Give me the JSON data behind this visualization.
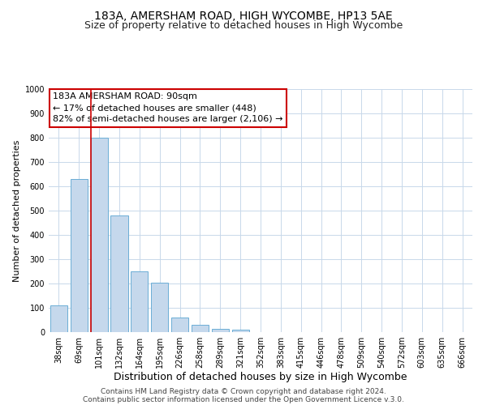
{
  "title": "183A, AMERSHAM ROAD, HIGH WYCOMBE, HP13 5AE",
  "subtitle": "Size of property relative to detached houses in High Wycombe",
  "xlabel": "Distribution of detached houses by size in High Wycombe",
  "ylabel": "Number of detached properties",
  "bar_values": [
    110,
    630,
    800,
    480,
    250,
    205,
    60,
    30,
    15,
    10,
    0,
    0,
    0,
    0,
    0,
    0,
    0,
    0,
    0,
    0,
    0
  ],
  "bar_labels": [
    "38sqm",
    "69sqm",
    "101sqm",
    "132sqm",
    "164sqm",
    "195sqm",
    "226sqm",
    "258sqm",
    "289sqm",
    "321sqm",
    "352sqm",
    "383sqm",
    "415sqm",
    "446sqm",
    "478sqm",
    "509sqm",
    "540sqm",
    "572sqm",
    "603sqm",
    "635sqm",
    "666sqm"
  ],
  "ylim": [
    0,
    1000
  ],
  "yticks": [
    0,
    100,
    200,
    300,
    400,
    500,
    600,
    700,
    800,
    900,
    1000
  ],
  "bar_color": "#c5d8ec",
  "bar_edge_color": "#6baed6",
  "grid_color": "#c8d8ea",
  "vline_color": "#cc0000",
  "vline_bar_index": 2,
  "annotation_title": "183A AMERSHAM ROAD: 90sqm",
  "annotation_line1": "← 17% of detached houses are smaller (448)",
  "annotation_line2": "82% of semi-detached houses are larger (2,106) →",
  "annotation_box_color": "#cc0000",
  "footer1": "Contains HM Land Registry data © Crown copyright and database right 2024.",
  "footer2": "Contains public sector information licensed under the Open Government Licence v.3.0.",
  "title_fontsize": 10,
  "subtitle_fontsize": 9,
  "xlabel_fontsize": 9,
  "ylabel_fontsize": 8,
  "tick_fontsize": 7,
  "annotation_fontsize": 8,
  "footer_fontsize": 6.5
}
